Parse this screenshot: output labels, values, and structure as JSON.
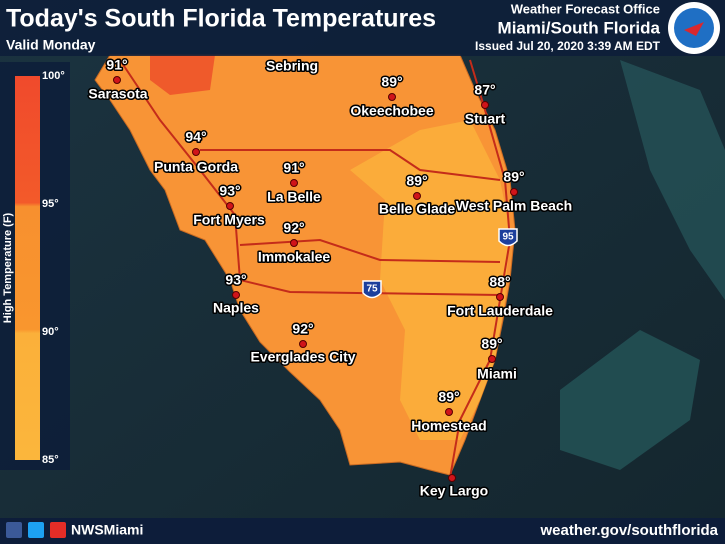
{
  "header": {
    "title": "Today's South Florida Temperatures",
    "valid": "Valid Monday",
    "office": "Weather Forecast Office",
    "office_area": "Miami/South Florida",
    "issued": "Issued Jul 20, 2020 3:39 AM EDT"
  },
  "legend": {
    "title": "High Temperature (F)",
    "labels": [
      "100°",
      "95°",
      "90°",
      "85°"
    ]
  },
  "cities": [
    {
      "name": "Sarasota",
      "temp": "91°"
    },
    {
      "name": "Sebring"
    },
    {
      "name": "Okeechobee",
      "temp": "89°"
    },
    {
      "name": "Stuart",
      "temp": "87°"
    },
    {
      "name": "Punta Gorda",
      "temp": "94°"
    },
    {
      "name": "La Belle",
      "temp": "91°"
    },
    {
      "name": "Fort Myers",
      "temp": "93°"
    },
    {
      "name": "Belle Glade",
      "temp": "89°"
    },
    {
      "name": "West Palm Beach",
      "temp": "89°"
    },
    {
      "name": "Immokalee",
      "temp": "92°"
    },
    {
      "name": "Naples",
      "temp": "93°"
    },
    {
      "name": "Fort Lauderdale",
      "temp": "88°"
    },
    {
      "name": "Everglades City",
      "temp": "92°"
    },
    {
      "name": "Miami",
      "temp": "89°"
    },
    {
      "name": "Homestead",
      "temp": "89°"
    },
    {
      "name": "Key Largo"
    }
  ],
  "shields": [
    "95",
    "75"
  ],
  "footer": {
    "social": "NWSMiami",
    "url": "weather.gov/southflorida"
  }
}
